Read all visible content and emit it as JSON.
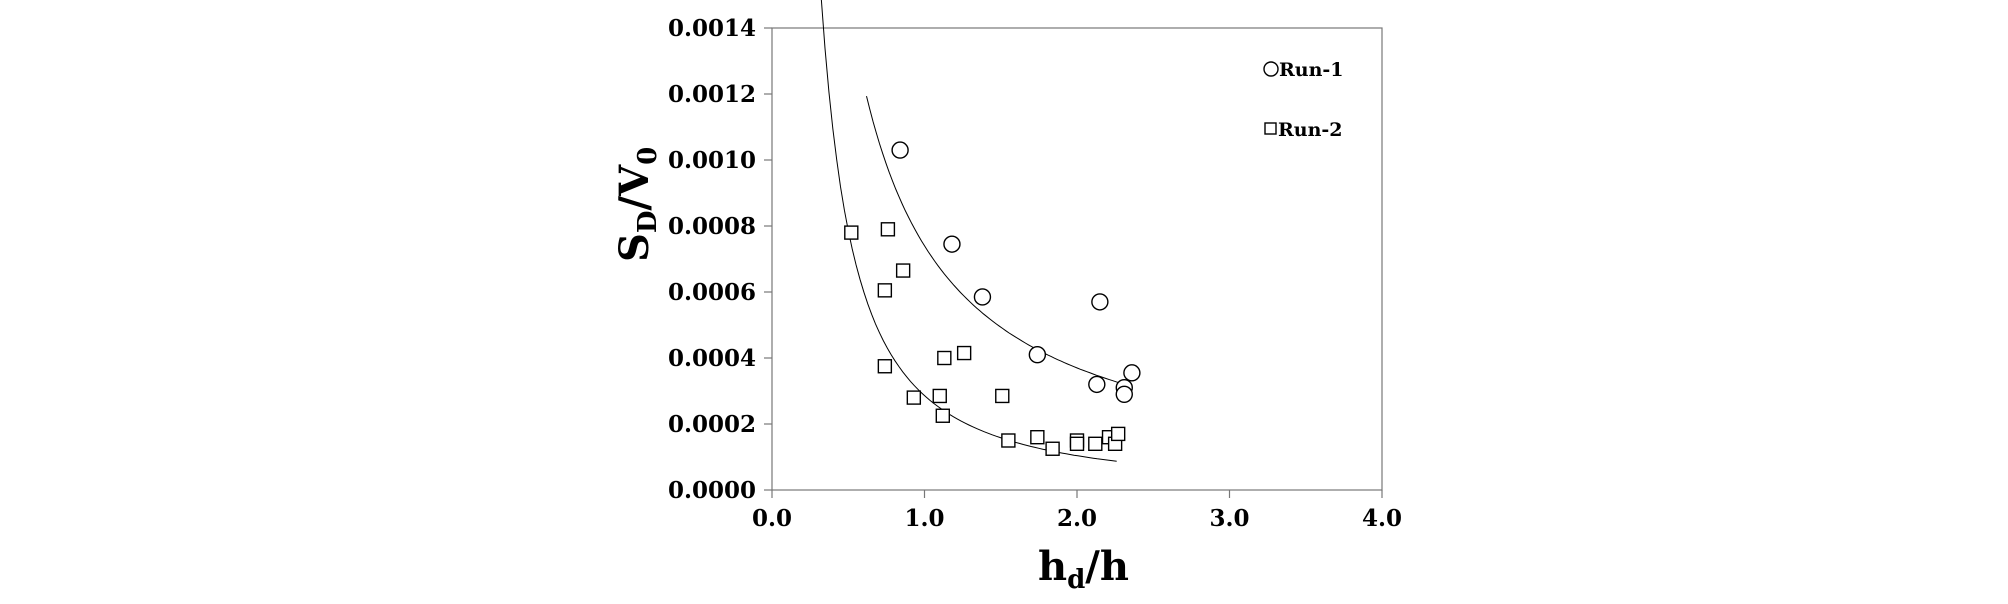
{
  "chart_data": {
    "type": "scatter",
    "title": "",
    "xlabel": {
      "main": "h",
      "sub": "d",
      "suffix": "/h"
    },
    "ylabel": {
      "main1": "S",
      "sub1": "D",
      "mid": "/V",
      "sub2": "0"
    },
    "xlim": [
      0.0,
      4.0
    ],
    "ylim": [
      0.0,
      0.0014
    ],
    "x_ticks": [
      0.0,
      1.0,
      2.0,
      3.0,
      4.0
    ],
    "x_tick_labels": [
      "0.0",
      "1.0",
      "2.0",
      "3.0",
      "4.0"
    ],
    "y_ticks": [
      0.0,
      0.0002,
      0.0004,
      0.0006,
      0.0008,
      0.001,
      0.0012,
      0.0014
    ],
    "y_tick_labels": [
      "0.0000",
      "0.0002",
      "0.0004",
      "0.0006",
      "0.0008",
      "0.0010",
      "0.0012",
      "0.0014"
    ],
    "grid": false,
    "legend_position": "top-right",
    "series": [
      {
        "name": "Run-1",
        "marker": "circle",
        "points": [
          [
            0.84,
            0.00103
          ],
          [
            1.18,
            0.000745
          ],
          [
            1.38,
            0.000585
          ],
          [
            1.74,
            0.00041
          ],
          [
            2.15,
            0.00057
          ],
          [
            2.13,
            0.00032
          ],
          [
            2.31,
            0.00031
          ],
          [
            2.31,
            0.00029
          ],
          [
            2.36,
            0.000355
          ]
        ],
        "fit": {
          "form": "a/x",
          "a": 0.00074,
          "x_range": [
            0.62,
            2.32
          ]
        }
      },
      {
        "name": "Run-2",
        "marker": "square",
        "points": [
          [
            0.52,
            0.00078
          ],
          [
            0.76,
            0.00079
          ],
          [
            0.74,
            0.000605
          ],
          [
            0.74,
            0.000375
          ],
          [
            0.86,
            0.000665
          ],
          [
            0.93,
            0.00028
          ],
          [
            1.1,
            0.000285
          ],
          [
            1.12,
            0.000225
          ],
          [
            1.13,
            0.0004
          ],
          [
            1.26,
            0.000415
          ],
          [
            1.51,
            0.000285
          ],
          [
            1.55,
            0.00015
          ],
          [
            1.74,
            0.00016
          ],
          [
            1.84,
            0.000125
          ],
          [
            2.0,
            0.00015
          ],
          [
            2.0,
            0.00014
          ],
          [
            2.12,
            0.00014
          ],
          [
            2.21,
            0.00016
          ],
          [
            2.25,
            0.00014
          ],
          [
            2.27,
            0.00017
          ]
        ],
        "fit": {
          "form": "a*x^-1.46",
          "a": 0.000286,
          "x_range": [
            0.22,
            2.26
          ]
        }
      }
    ]
  }
}
